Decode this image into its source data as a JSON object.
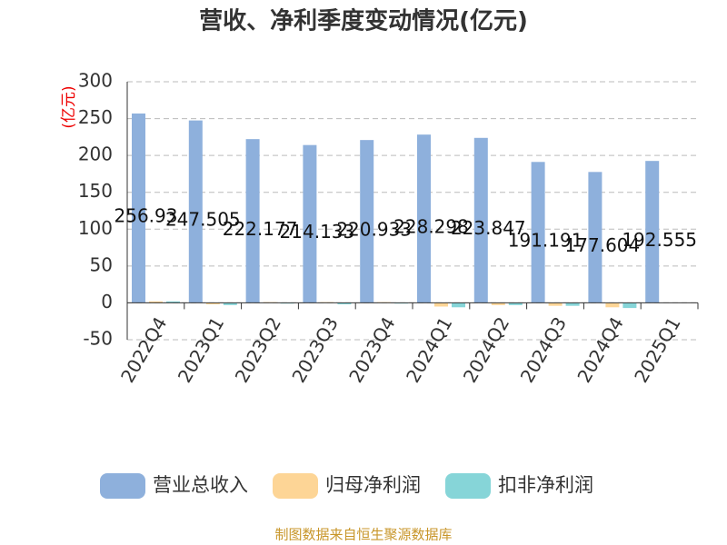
{
  "chart_data": {
    "type": "bar",
    "title": "营收、净利季度变动情况(亿元)",
    "y_label": "(亿元)",
    "source": "制图数据来自恒生聚源数据库",
    "categories": [
      "2022Q4",
      "2023Q1",
      "2023Q2",
      "2023Q3",
      "2023Q4",
      "2024Q1",
      "2024Q2",
      "2024Q3",
      "2024Q4",
      "2025Q1"
    ],
    "series": [
      {
        "name": "营业总收入",
        "color": "#8eb0dc",
        "values": [
          256.93,
          247.505,
          222.177,
          214.133,
          220.933,
          228.298,
          223.847,
          191.191,
          177.604,
          192.555
        ],
        "show_labels": true
      },
      {
        "name": "归母净利润",
        "color": "#fdd596",
        "values": [
          2,
          -2,
          1,
          1,
          1,
          -5,
          -3,
          -4,
          -6,
          null
        ]
      },
      {
        "name": "扣非净利润",
        "color": "#86d5d8",
        "values": [
          2,
          -3,
          -1,
          -2,
          -1,
          -6,
          -3,
          -4,
          -7,
          null
        ]
      }
    ],
    "ylim": [
      -50,
      300
    ],
    "yticks": [
      -50,
      0,
      50,
      100,
      150,
      200,
      250,
      300
    ],
    "grid": true
  }
}
